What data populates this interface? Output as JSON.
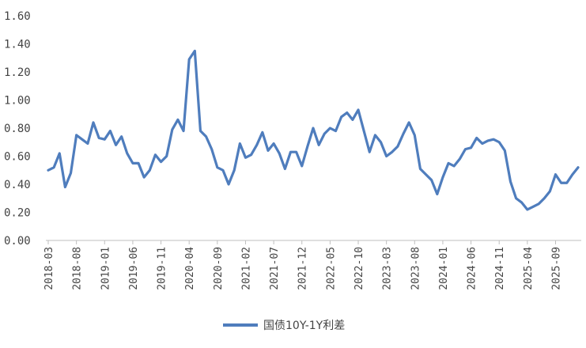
{
  "chart_data": {
    "type": "line",
    "title": "",
    "xlabel": "",
    "ylabel": "",
    "ylim": [
      0,
      1.6
    ],
    "yticks": [
      "0.00",
      "0.20",
      "0.40",
      "0.60",
      "0.80",
      "1.00",
      "1.20",
      "1.40",
      "1.60"
    ],
    "xtick_labels": [
      "2018-03",
      "2018-08",
      "2019-01",
      "2019-06",
      "2019-11",
      "2020-04",
      "2020-09",
      "2021-02",
      "2021-07",
      "2021-12",
      "2022-05",
      "2022-10",
      "2023-03",
      "2023-08",
      "2024-01",
      "2024-06",
      "2024-11",
      "2025-04",
      "2025-09"
    ],
    "grid": false,
    "legend": "bottom",
    "colors": {
      "line": "#4f7dbd",
      "axis": "#bfbfbf"
    },
    "series": [
      {
        "name": "国债10Y-1Y利差",
        "x": [
          "2018-03",
          "2018-04",
          "2018-05",
          "2018-06",
          "2018-07",
          "2018-08",
          "2018-09",
          "2018-10",
          "2018-11",
          "2018-12",
          "2019-01",
          "2019-02",
          "2019-03",
          "2019-04",
          "2019-05",
          "2019-06",
          "2019-07",
          "2019-08",
          "2019-09",
          "2019-10",
          "2019-11",
          "2019-12",
          "2020-01",
          "2020-02",
          "2020-03",
          "2020-04",
          "2020-05",
          "2020-06",
          "2020-07",
          "2020-08",
          "2020-09",
          "2020-10",
          "2020-11",
          "2020-12",
          "2021-01",
          "2021-02",
          "2021-03",
          "2021-04",
          "2021-05",
          "2021-06",
          "2021-07",
          "2021-08",
          "2021-09",
          "2021-10",
          "2021-11",
          "2021-12",
          "2022-01",
          "2022-02",
          "2022-03",
          "2022-04",
          "2022-05",
          "2022-06",
          "2022-07",
          "2022-08",
          "2022-09",
          "2022-10",
          "2022-11",
          "2022-12",
          "2023-01",
          "2023-02",
          "2023-03",
          "2023-04",
          "2023-05",
          "2023-06",
          "2023-07",
          "2023-08",
          "2023-09",
          "2023-10",
          "2023-11",
          "2023-12",
          "2024-01",
          "2024-02",
          "2024-03",
          "2024-04",
          "2024-05",
          "2024-06",
          "2024-07",
          "2024-08",
          "2024-09",
          "2024-10",
          "2024-11",
          "2024-12",
          "2025-01",
          "2025-02",
          "2025-03",
          "2025-04",
          "2025-05",
          "2025-06",
          "2025-07",
          "2025-08",
          "2025-09",
          "2025-10",
          "2025-11",
          "2025-12",
          "2026-01"
        ],
        "values": [
          0.5,
          0.52,
          0.62,
          0.38,
          0.48,
          0.75,
          0.72,
          0.69,
          0.84,
          0.73,
          0.72,
          0.78,
          0.68,
          0.74,
          0.62,
          0.55,
          0.55,
          0.45,
          0.5,
          0.61,
          0.56,
          0.6,
          0.79,
          0.86,
          0.78,
          1.29,
          1.35,
          0.78,
          0.74,
          0.65,
          0.52,
          0.5,
          0.4,
          0.5,
          0.69,
          0.59,
          0.61,
          0.68,
          0.77,
          0.64,
          0.69,
          0.62,
          0.51,
          0.63,
          0.63,
          0.53,
          0.67,
          0.8,
          0.68,
          0.76,
          0.8,
          0.78,
          0.88,
          0.91,
          0.86,
          0.93,
          0.78,
          0.63,
          0.75,
          0.7,
          0.6,
          0.63,
          0.67,
          0.76,
          0.84,
          0.75,
          0.51,
          0.47,
          0.43,
          0.33,
          0.45,
          0.55,
          0.53,
          0.58,
          0.65,
          0.66,
          0.73,
          0.69,
          0.71,
          0.72,
          0.7,
          0.64,
          0.42,
          0.3,
          0.27,
          0.22,
          0.24,
          0.26,
          0.3,
          0.35,
          0.47,
          0.41,
          0.41,
          0.47,
          0.52
        ]
      }
    ]
  }
}
